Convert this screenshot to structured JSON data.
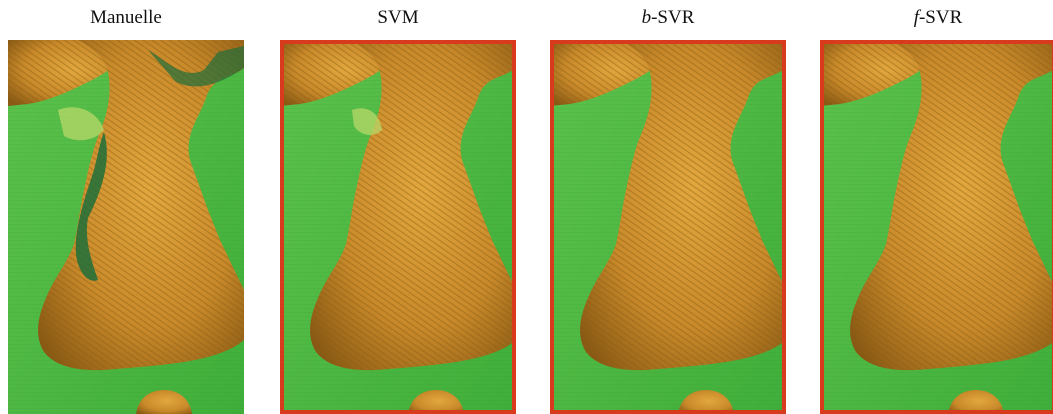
{
  "panels": [
    {
      "title_prefix": "",
      "title_rest": "Manuelle",
      "bordered": false,
      "wetland_extra": true
    },
    {
      "title_prefix": "",
      "title_rest": "SVM",
      "bordered": true,
      "wetland_extra": false
    },
    {
      "title_prefix": "b",
      "title_rest": "-SVR",
      "bordered": true,
      "wetland_extra": false
    },
    {
      "title_prefix": "f",
      "title_rest": "-SVR",
      "bordered": true,
      "wetland_extra": false
    }
  ],
  "colors": {
    "water": "#3fae3a",
    "water_light": "#5cc24c",
    "land": "#c98a2a",
    "land_dark": "#8a5a14",
    "land_light": "#e2a83e",
    "wet": "#1f6e3a",
    "pale": "#b8d86a",
    "border": "#d83a1e"
  }
}
